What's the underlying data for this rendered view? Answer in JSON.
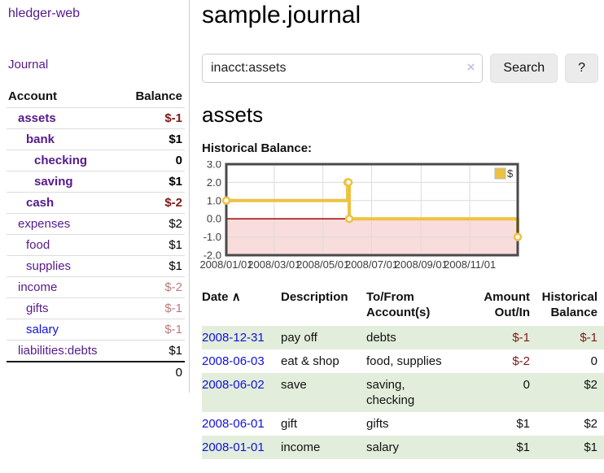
{
  "app": {
    "brand": "hledger-web",
    "nav_journal": "Journal"
  },
  "sidebar": {
    "header": {
      "account": "Account",
      "balance": "Balance"
    },
    "accounts": [
      {
        "name": "assets",
        "depth": 1,
        "balance": "$-1",
        "bold": true,
        "balance_style": "neg",
        "link": "purple"
      },
      {
        "name": "bank",
        "depth": 2,
        "balance": "$1",
        "bold": true,
        "balance_style": "pos",
        "link": "purple"
      },
      {
        "name": "checking",
        "depth": 3,
        "balance": "0",
        "bold": true,
        "balance_style": "pos",
        "link": "purple"
      },
      {
        "name": "saving",
        "depth": 3,
        "balance": "$1",
        "bold": true,
        "balance_style": "pos",
        "link": "purple"
      },
      {
        "name": "cash",
        "depth": 2,
        "balance": "$-2",
        "bold": true,
        "balance_style": "neg",
        "link": "purple"
      },
      {
        "name": "expenses",
        "depth": 1,
        "balance": "$2",
        "bold": false,
        "balance_style": "pos",
        "link": "purple"
      },
      {
        "name": "food",
        "depth": 2,
        "balance": "$1",
        "bold": false,
        "balance_style": "pos",
        "link": "purple"
      },
      {
        "name": "supplies",
        "depth": 2,
        "balance": "$1",
        "bold": false,
        "balance_style": "pos",
        "link": "purple"
      },
      {
        "name": "income",
        "depth": 1,
        "balance": "$-2",
        "bold": false,
        "balance_style": "neg-muted",
        "link": "purple"
      },
      {
        "name": "gifts",
        "depth": 2,
        "balance": "$-1",
        "bold": false,
        "balance_style": "neg-muted",
        "link": "purple"
      },
      {
        "name": "salary",
        "depth": 2,
        "balance": "$-1",
        "bold": false,
        "balance_style": "neg-muted",
        "link": "blue"
      },
      {
        "name": "liabilities:debts",
        "depth": 1,
        "balance": "$1",
        "bold": false,
        "balance_style": "pos",
        "link": "purple"
      }
    ],
    "total": "0"
  },
  "header": {
    "title": "sample.journal"
  },
  "search": {
    "value": "inacct:assets",
    "clear_icon": "×",
    "button": "Search",
    "help_button": "?"
  },
  "account_page": {
    "title": "assets",
    "chart_label": "Historical Balance:"
  },
  "chart_data": {
    "type": "line",
    "title": "Historical Balance",
    "step": true,
    "x": [
      "2008-01-01",
      "2008-06-01",
      "2008-06-02",
      "2008-06-03",
      "2008-12-31"
    ],
    "series": [
      {
        "name": "$",
        "values": [
          1,
          2,
          2,
          0,
          -1
        ]
      }
    ],
    "x_range": [
      "2008-01-01",
      "2008-12-31"
    ],
    "ylim": [
      -2,
      3
    ],
    "y_ticks": [
      "3.0",
      "2.0",
      "1.0",
      "0.0",
      "-1.0",
      "-2.0"
    ],
    "x_tick_labels": [
      "2008/01/01",
      "2008/03/01",
      "2008/05/01",
      "2008/07/01",
      "2008/09/01",
      "2008/11/01"
    ],
    "legend": {
      "label": "$",
      "position": "top-right"
    },
    "grid": true,
    "negative_region_shaded": true
  },
  "register": {
    "sort_icon": "∧",
    "columns": [
      "Date",
      "Description",
      "To/From Account(s)",
      "Amount Out/In",
      "Historical Balance"
    ],
    "rows": [
      {
        "date": "2008-12-31",
        "description": "pay off",
        "accounts": "debts",
        "amount": "$-1",
        "amount_neg": true,
        "balance": "$-1",
        "balance_neg": true
      },
      {
        "date": "2008-06-03",
        "description": "eat & shop",
        "accounts": "food, supplies",
        "amount": "$-2",
        "amount_neg": true,
        "balance": "0",
        "balance_neg": false
      },
      {
        "date": "2008-06-02",
        "description": "save",
        "accounts": "saving,\nchecking",
        "amount": "0",
        "amount_neg": false,
        "balance": "$2",
        "balance_neg": false
      },
      {
        "date": "2008-06-01",
        "description": "gift",
        "accounts": "gifts",
        "amount": "$1",
        "amount_neg": false,
        "balance": "$2",
        "balance_neg": false
      },
      {
        "date": "2008-01-01",
        "description": "income",
        "accounts": "salary",
        "amount": "$1",
        "amount_neg": false,
        "balance": "$1",
        "balance_neg": false
      }
    ]
  },
  "colors": {
    "link-purple": "#551a8b",
    "link-blue": "#1010dd",
    "neg-strong": "#7f1818",
    "neg-muted": "#b97c7c",
    "row-green": "#e2eedb",
    "button-gray": "#ebebeb",
    "series-gold": "#edc240",
    "marker-fill": "#fdf8ee",
    "negative-region-pink": "#f9dcdc",
    "zero-line-red": "#a40000",
    "chart-border-gray": "#4a4a4a",
    "grid-line-gray": "#dcdcdc",
    "axis-text": "#3c3c3c"
  }
}
